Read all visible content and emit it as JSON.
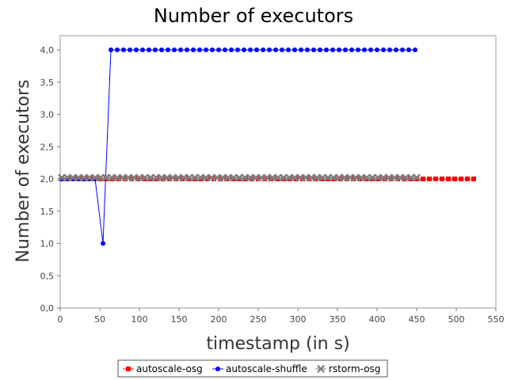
{
  "chart_data": {
    "type": "line",
    "title": "Number of executors",
    "xlabel": "timestamp (in s)",
    "ylabel": "Number of executors",
    "xlim": [
      0,
      550
    ],
    "ylim": [
      0,
      4.2
    ],
    "x_ticks": [
      "0",
      "50",
      "100",
      "150",
      "200",
      "250",
      "300",
      "350",
      "400",
      "450",
      "500",
      "550"
    ],
    "y_ticks": [
      "0,0",
      "0,5",
      "1,0",
      "1,5",
      "2,0",
      "2,5",
      "3,0",
      "3,5",
      "4,0"
    ],
    "grid": false,
    "legend_position": "bottom",
    "series": [
      {
        "name": "autoscale-osg",
        "color": "#ff0000",
        "marker": "square",
        "x_start": 2,
        "x_step": 8,
        "count": 66,
        "constant_y": 2
      },
      {
        "name": "autoscale-shuffle",
        "color": "#0000ff",
        "marker": "circle",
        "points": [
          [
            2,
            2
          ],
          [
            9,
            2
          ],
          [
            16,
            2
          ],
          [
            23,
            2
          ],
          [
            30,
            2
          ],
          [
            37,
            2
          ],
          [
            44,
            2
          ],
          [
            54,
            1
          ],
          [
            64,
            4
          ],
          [
            72,
            4
          ],
          [
            80,
            4
          ],
          [
            88,
            4
          ],
          [
            96,
            4
          ],
          [
            104,
            4
          ],
          [
            112,
            4
          ],
          [
            120,
            4
          ],
          [
            128,
            4
          ],
          [
            136,
            4
          ],
          [
            144,
            4
          ],
          [
            152,
            4
          ],
          [
            160,
            4
          ],
          [
            168,
            4
          ],
          [
            176,
            4
          ],
          [
            184,
            4
          ],
          [
            192,
            4
          ],
          [
            200,
            4
          ],
          [
            208,
            4
          ],
          [
            216,
            4
          ],
          [
            224,
            4
          ],
          [
            232,
            4
          ],
          [
            240,
            4
          ],
          [
            248,
            4
          ],
          [
            256,
            4
          ],
          [
            264,
            4
          ],
          [
            272,
            4
          ],
          [
            280,
            4
          ],
          [
            288,
            4
          ],
          [
            296,
            4
          ],
          [
            304,
            4
          ],
          [
            312,
            4
          ],
          [
            320,
            4
          ],
          [
            328,
            4
          ],
          [
            336,
            4
          ],
          [
            344,
            4
          ],
          [
            352,
            4
          ],
          [
            360,
            4
          ],
          [
            368,
            4
          ],
          [
            376,
            4
          ],
          [
            384,
            4
          ],
          [
            392,
            4
          ],
          [
            400,
            4
          ],
          [
            408,
            4
          ],
          [
            416,
            4
          ],
          [
            424,
            4
          ],
          [
            432,
            4
          ],
          [
            440,
            4
          ],
          [
            448,
            4
          ]
        ]
      },
      {
        "name": "rstorm-osg",
        "color": "#808080",
        "marker": "x",
        "x_start": 2,
        "x_step": 7,
        "count": 65,
        "constant_y": 2.02
      }
    ]
  }
}
